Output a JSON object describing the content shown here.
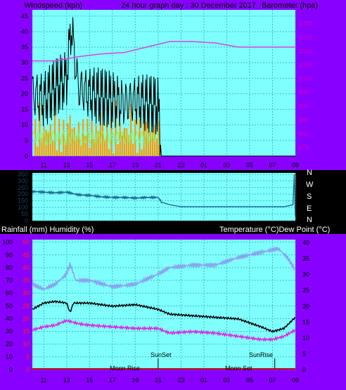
{
  "header": {
    "left": "Windspeed (kph)",
    "center": "24 hour graph day : 30 December 2017",
    "right": "Barometer (hpa)"
  },
  "wind_dir_labels": [
    "N",
    "W",
    "S",
    "E",
    "N"
  ],
  "mid": {
    "left": "Rainfall (mm)  Humidity (%)",
    "right": "Temperature (°C)Dew Point (°C)"
  },
  "astro": {
    "sunset": "SunSet",
    "sunrise": "SunRise",
    "moonrise": "Moon Rise",
    "moonset": "Moon Set"
  },
  "colors": {
    "frame": "#8800ff",
    "plot_bg": "#80ffff",
    "grid": "#40c0c0",
    "windspeed": "#000000",
    "gust_green": "#90ee60",
    "rain_bars": "#ff9900",
    "barometer": "#e040e0",
    "direction": "#1a5f8a",
    "humidity": "#8aa0ee",
    "temperature": "#000000",
    "dewpoint": "#e020e0"
  },
  "chart_data": [
    {
      "type": "line",
      "title": "24 hour graph day : 30 December 2017",
      "x_ticks": [
        "11",
        "13",
        "15",
        "17",
        "19",
        "21",
        "23",
        "01",
        "03",
        "05",
        "07",
        "09"
      ],
      "left_axis": {
        "label": "Windspeed (kph)",
        "ticks": [
          0,
          5,
          10,
          15,
          20,
          25,
          30,
          35,
          40,
          45
        ],
        "range": [
          0,
          47
        ]
      },
      "right_axis": {
        "label": "Barometer (hpa)",
        "ticks": [
          975,
          980,
          985,
          990,
          995,
          1000,
          1005,
          1010,
          1015,
          1020
        ],
        "range": [
          972,
          1025
        ]
      },
      "series": [
        {
          "name": "Windspeed (kph)",
          "x": [
            10,
            11,
            12,
            13,
            13.4,
            14,
            15,
            16,
            17,
            18,
            19,
            20,
            21,
            21.3,
            22,
            24,
            26,
            28,
            30,
            32,
            33
          ],
          "values": [
            20,
            18,
            22,
            25,
            42,
            22,
            20,
            19,
            18,
            17,
            18,
            17,
            16,
            0,
            0,
            0,
            0,
            0,
            0,
            0,
            0
          ]
        },
        {
          "name": "Barometer (hpa)",
          "x": [
            10,
            12,
            14,
            16,
            18,
            20,
            22,
            24,
            26,
            28,
            30,
            32,
            33
          ],
          "values": [
            1006.5,
            1006.5,
            1008,
            1009,
            1009.5,
            1011.5,
            1013.5,
            1013.5,
            1013,
            1011.5,
            1011.5,
            1011.5,
            1011.5
          ]
        }
      ],
      "grid": true
    },
    {
      "type": "line",
      "left_axis": {
        "ticks": [
          0,
          50,
          100,
          150,
          200,
          250,
          300,
          350
        ],
        "range": [
          0,
          360
        ]
      },
      "right_axis": {
        "ticks": [
          "N",
          "W",
          "S",
          "E",
          "N"
        ]
      },
      "series": [
        {
          "name": "Wind direction",
          "x": [
            10,
            11,
            12,
            13,
            14,
            15,
            16,
            17,
            18,
            19,
            20,
            21,
            21.3,
            22,
            23,
            24,
            26,
            28,
            30,
            32,
            32.8,
            32.9,
            33
          ],
          "values": [
            220,
            215,
            210,
            215,
            195,
            190,
            180,
            175,
            175,
            170,
            175,
            175,
            140,
            120,
            105,
            105,
            105,
            105,
            105,
            105,
            120,
            350,
            30
          ]
        }
      ],
      "grid": true
    },
    {
      "type": "line",
      "left_axis": {
        "label": "Rainfall (mm)  Humidity (%)",
        "ticks": [
          0,
          10,
          20,
          30,
          40,
          50,
          60,
          70,
          80,
          90,
          100
        ],
        "range": [
          0,
          102
        ]
      },
      "right_axis": {
        "label": "Temperature (°C)Dew Point (°C)",
        "ticks": [
          0,
          5,
          10,
          15,
          20,
          25,
          30,
          35,
          40
        ],
        "range": [
          0,
          41
        ]
      },
      "series": [
        {
          "name": "Humidity (%)",
          "x": [
            10,
            11,
            12,
            13,
            13.3,
            13.8,
            15,
            17,
            19,
            21,
            22,
            24,
            26,
            28,
            30,
            31.5,
            32.3,
            33
          ],
          "values": [
            67,
            63,
            67,
            75,
            83,
            70,
            70,
            65,
            67,
            75,
            80,
            82,
            82,
            88,
            92,
            95,
            88,
            78
          ]
        },
        {
          "name": "Temperature (°C)",
          "x": [
            10,
            11,
            12,
            13,
            13.3,
            13.6,
            15,
            17,
            19,
            21,
            22,
            24,
            26,
            28,
            30,
            31,
            32,
            33
          ],
          "values": [
            19,
            21,
            21.5,
            21,
            18,
            21,
            21,
            20,
            20.5,
            19,
            17.5,
            17,
            16.5,
            16,
            13.5,
            12,
            13,
            16.5
          ]
        },
        {
          "name": "Dew Point (°C)",
          "x": [
            10,
            11,
            12,
            13,
            14,
            15,
            17,
            19,
            21,
            22,
            24,
            26,
            28,
            30,
            31,
            32,
            33
          ],
          "values": [
            12.5,
            13.5,
            14,
            15.5,
            14.5,
            14,
            13.5,
            13,
            13,
            11.5,
            12,
            11.5,
            10.5,
            9.5,
            9.5,
            10.5,
            12.5
          ]
        },
        {
          "name": "Rainfall (mm)",
          "x": [
            10,
            33
          ],
          "values": [
            0,
            0
          ]
        }
      ],
      "grid": true
    }
  ]
}
